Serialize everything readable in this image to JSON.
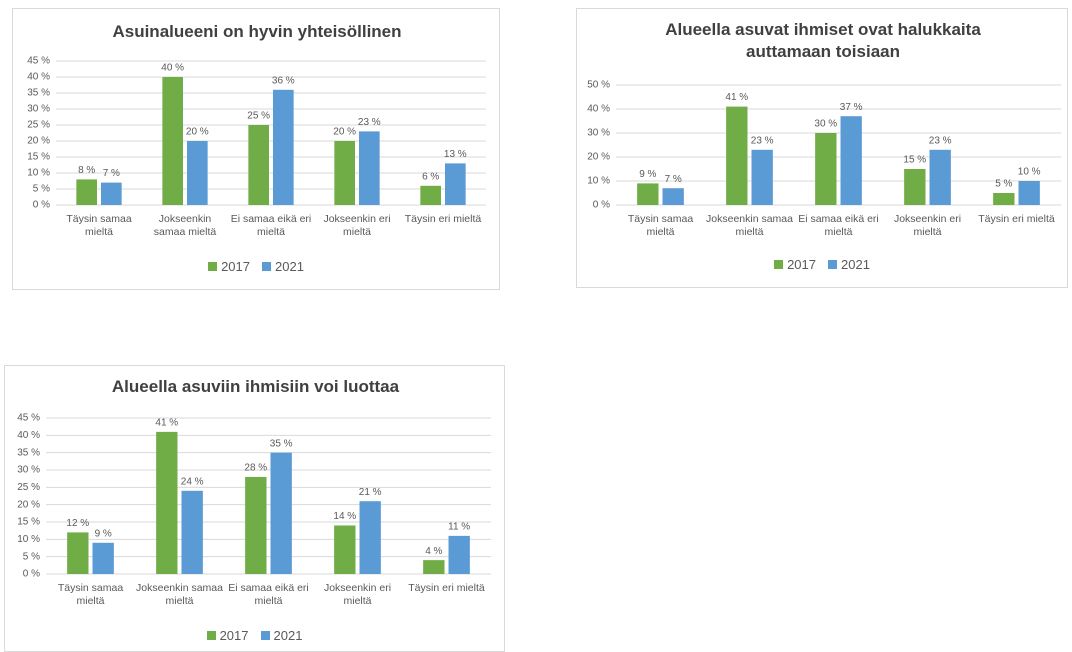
{
  "chart_data": [
    {
      "type": "bar",
      "title": "Asuinalueeni on hyvin yhteisöllinen",
      "categories": [
        "Täysin samaa mieltä",
        "Jokseenkin samaa mieltä",
        "Ei samaa eikä eri mieltä",
        "Jokseenkin eri mieltä",
        "Täysin eri mieltä"
      ],
      "series": [
        {
          "name": "2017",
          "color": "#70ad47",
          "values": [
            8,
            40,
            25,
            20,
            6
          ],
          "value_labels": [
            "8 %",
            "40 %",
            "25 %",
            "20 %",
            "6 %"
          ]
        },
        {
          "name": "2021",
          "color": "#5b9bd5",
          "values": [
            7,
            20,
            36,
            23,
            13
          ],
          "value_labels": [
            "7 %",
            "20 %",
            "36 %",
            "23 %",
            "13 %"
          ]
        }
      ],
      "ylim": [
        0,
        45
      ],
      "yticks": [
        {
          "value": 0,
          "label": "0 %"
        },
        {
          "value": 5,
          "label": "5 %"
        },
        {
          "value": 10,
          "label": "10 %"
        },
        {
          "value": 15,
          "label": "15 %"
        },
        {
          "value": 20,
          "label": "20 %"
        },
        {
          "value": 25,
          "label": "25 %"
        },
        {
          "value": 30,
          "label": "30 %"
        },
        {
          "value": 35,
          "label": "35 %"
        },
        {
          "value": 40,
          "label": "40 %"
        },
        {
          "value": 45,
          "label": "45 %"
        }
      ],
      "grid": true,
      "legend": "bottom"
    },
    {
      "type": "bar",
      "title": "Alueella asuvat ihmiset ovat halukkaita auttamaan toisiaan",
      "categories": [
        "Täysin samaa mieltä",
        "Jokseenkin samaa mieltä",
        "Ei samaa eikä eri mieltä",
        "Jokseenkin eri mieltä",
        "Täysin eri mieltä"
      ],
      "series": [
        {
          "name": "2017",
          "color": "#70ad47",
          "values": [
            9,
            41,
            30,
            15,
            5
          ],
          "value_labels": [
            "9 %",
            "41 %",
            "30 %",
            "15 %",
            "5 %"
          ]
        },
        {
          "name": "2021",
          "color": "#5b9bd5",
          "values": [
            7,
            23,
            37,
            23,
            10
          ],
          "value_labels": [
            "7 %",
            "23 %",
            "37 %",
            "23 %",
            "10 %"
          ]
        }
      ],
      "ylim": [
        0,
        50
      ],
      "yticks": [
        {
          "value": 0,
          "label": "0 %"
        },
        {
          "value": 10,
          "label": "10 %"
        },
        {
          "value": 20,
          "label": "20 %"
        },
        {
          "value": 30,
          "label": "30 %"
        },
        {
          "value": 40,
          "label": "40 %"
        },
        {
          "value": 50,
          "label": "50 %"
        }
      ],
      "grid": true,
      "legend": "bottom"
    },
    {
      "type": "bar",
      "title": "Alueella asuviin ihmisiin voi luottaa",
      "categories": [
        "Täysin samaa mieltä",
        "Jokseenkin samaa mieltä",
        "Ei samaa eikä eri mieltä",
        "Jokseenkin eri mieltä",
        "Täysin eri mieltä"
      ],
      "series": [
        {
          "name": "2017",
          "color": "#70ad47",
          "values": [
            12,
            41,
            28,
            14,
            4
          ],
          "value_labels": [
            "12 %",
            "41 %",
            "28 %",
            "14 %",
            "4 %"
          ]
        },
        {
          "name": "2021",
          "color": "#5b9bd5",
          "values": [
            9,
            24,
            35,
            21,
            11
          ],
          "value_labels": [
            "9 %",
            "24 %",
            "35 %",
            "21 %",
            "11 %"
          ]
        }
      ],
      "ylim": [
        0,
        45
      ],
      "yticks": [
        {
          "value": 0,
          "label": "0 %"
        },
        {
          "value": 5,
          "label": "5 %"
        },
        {
          "value": 10,
          "label": "10 %"
        },
        {
          "value": 15,
          "label": "15 %"
        },
        {
          "value": 20,
          "label": "20 %"
        },
        {
          "value": 25,
          "label": "25 %"
        },
        {
          "value": 30,
          "label": "30 %"
        },
        {
          "value": 35,
          "label": "35 %"
        },
        {
          "value": 40,
          "label": "40 %"
        },
        {
          "value": 45,
          "label": "45 %"
        }
      ],
      "grid": true,
      "legend": "bottom"
    }
  ]
}
